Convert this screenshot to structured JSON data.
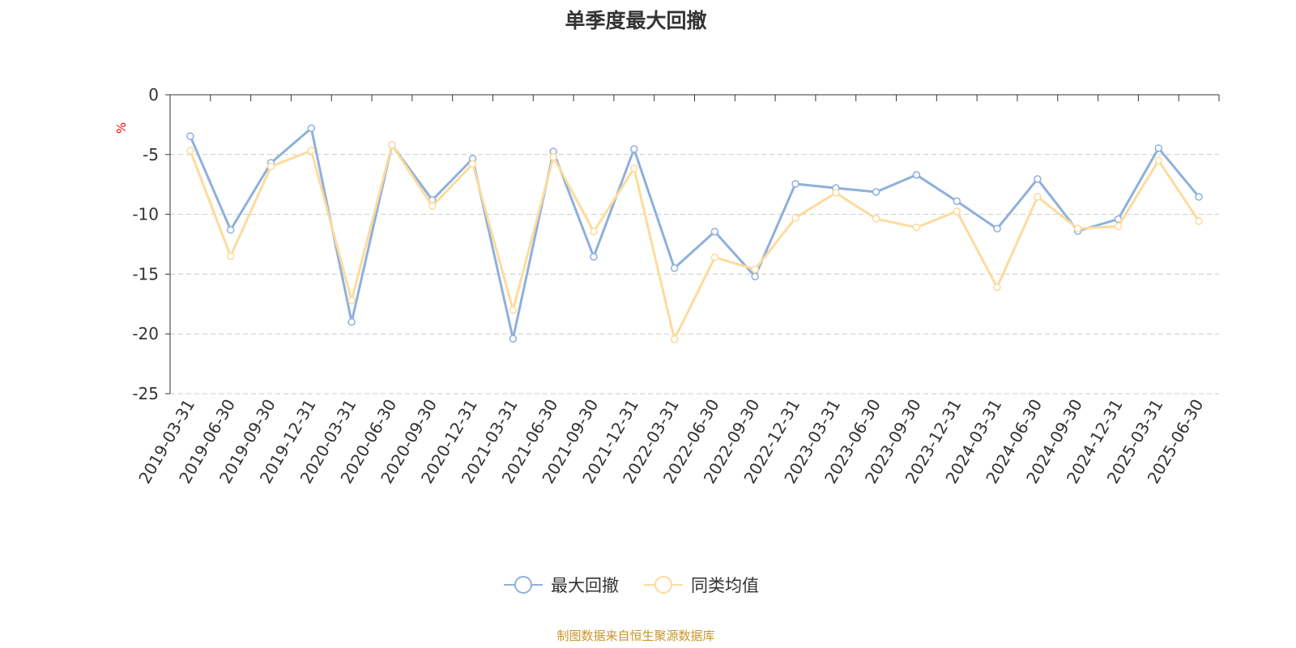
{
  "chart_data": {
    "type": "line",
    "title": "单季度最大回撤",
    "ylabel": "%",
    "ylim": [
      -25,
      0
    ],
    "yticks": [
      0,
      -5,
      -10,
      -15,
      -20,
      -25
    ],
    "grid": true,
    "legend_position": "bottom",
    "categories": [
      "2019-03-31",
      "2019-06-30",
      "2019-09-30",
      "2019-12-31",
      "2020-03-31",
      "2020-06-30",
      "2020-09-30",
      "2020-12-31",
      "2021-03-31",
      "2021-06-30",
      "2021-09-30",
      "2021-12-31",
      "2022-03-31",
      "2022-06-30",
      "2022-09-30",
      "2022-12-31",
      "2023-03-31",
      "2023-06-30",
      "2023-09-30",
      "2023-12-31",
      "2024-03-31",
      "2024-06-30",
      "2024-09-30",
      "2024-12-31",
      "2025-03-31",
      "2025-06-30"
    ],
    "series": [
      {
        "name": "最大回撤",
        "color": "#8eb0dc",
        "values": [
          -3.46,
          -11.3,
          -5.7,
          -2.8,
          -19.0,
          -4.2,
          -8.8,
          -5.35,
          -20.4,
          -4.75,
          -13.55,
          -4.54,
          -14.5,
          -11.45,
          -15.2,
          -7.45,
          -7.8,
          -8.13,
          -6.7,
          -8.9,
          -11.2,
          -7.05,
          -11.4,
          -10.4,
          -4.47,
          -8.54
        ]
      },
      {
        "name": "同类均值",
        "color": "#fddb9c",
        "values": [
          -4.67,
          -13.5,
          -6.0,
          -4.67,
          -17.2,
          -4.2,
          -9.3,
          -5.8,
          -18.0,
          -5.2,
          -11.45,
          -6.15,
          -20.45,
          -13.6,
          -14.6,
          -10.3,
          -8.2,
          -10.37,
          -11.1,
          -9.75,
          -16.1,
          -8.54,
          -11.2,
          -11.0,
          -5.5,
          -10.57
        ]
      }
    ]
  },
  "source_note": "制图数据来自恒生聚源数据库"
}
